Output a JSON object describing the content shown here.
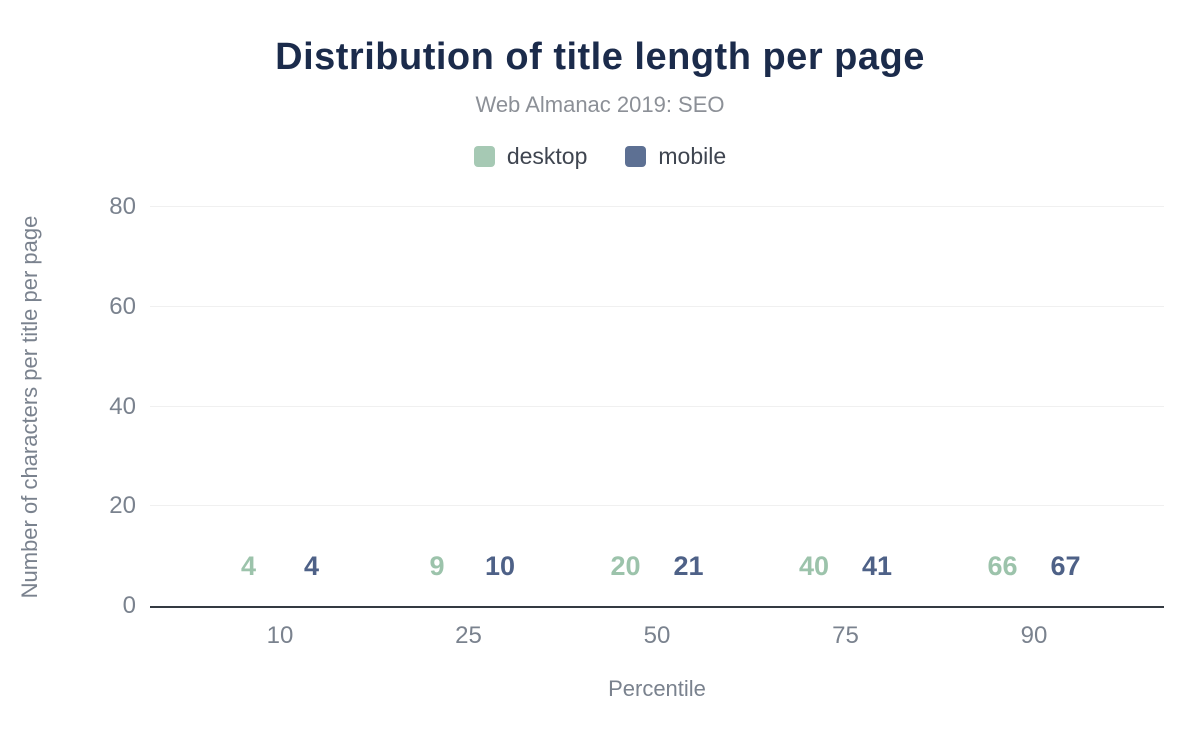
{
  "chart_data": {
    "type": "bar",
    "title": "Distribution of title length per page",
    "subtitle": "Web Almanac 2019: SEO",
    "categories": [
      "10",
      "25",
      "50",
      "75",
      "90"
    ],
    "series": [
      {
        "name": "desktop",
        "color": "#a6c9b4",
        "label_color": "#9cc3ab",
        "values": [
          4,
          9,
          20,
          40,
          66
        ]
      },
      {
        "name": "mobile",
        "color": "#5d7093",
        "label_color": "#4e6187",
        "values": [
          4,
          10,
          21,
          41,
          67
        ]
      }
    ],
    "xlabel": "Percentile",
    "ylabel": "Number of characters per title per page",
    "ylim": [
      0,
      80
    ],
    "yticks": [
      0,
      20,
      40,
      60,
      80
    ],
    "grid": "horizontal",
    "legend_position": "top",
    "colors": {
      "title": "#1b2b4b",
      "subtitle": "#8c9097",
      "axis_text": "#7a828e",
      "axis_line": "#343a42",
      "gridline": "#f0f0f0",
      "background": "#ffffff"
    }
  }
}
